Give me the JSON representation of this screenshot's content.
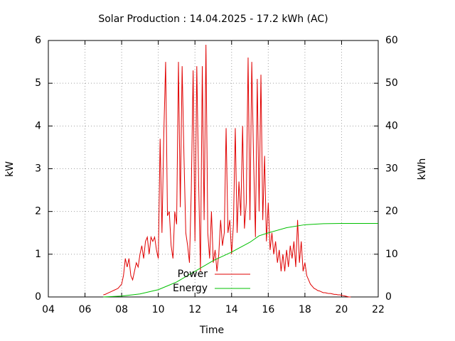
{
  "chart_data": {
    "type": "line",
    "title": "Solar Production : 14.04.2025 - 17.2 kWh (AC)",
    "xlabel": "Time",
    "ylabel": "kW",
    "y2label": "kWh",
    "xlim": [
      4,
      22
    ],
    "xticks": [
      {
        "value": 4,
        "label": "04"
      },
      {
        "value": 6,
        "label": "06"
      },
      {
        "value": 8,
        "label": "08"
      },
      {
        "value": 10,
        "label": "10"
      },
      {
        "value": 12,
        "label": "12"
      },
      {
        "value": 14,
        "label": "14"
      },
      {
        "value": 16,
        "label": "16"
      },
      {
        "value": 18,
        "label": "18"
      },
      {
        "value": 20,
        "label": "20"
      },
      {
        "value": 22,
        "label": "22"
      }
    ],
    "ylim": [
      0,
      6
    ],
    "yticks": [
      0,
      1,
      2,
      3,
      4,
      5,
      6
    ],
    "y2lim": [
      0,
      60
    ],
    "y2ticks": [
      0,
      10,
      20,
      30,
      40,
      50,
      60
    ],
    "grid": true,
    "legend": "bottom center",
    "series": [
      {
        "name": "Power",
        "color": "#e00000",
        "x": [
          7.0,
          7.1,
          7.2,
          7.3,
          7.4,
          7.5,
          7.6,
          7.7,
          7.8,
          7.9,
          8.0,
          8.1,
          8.2,
          8.3,
          8.4,
          8.5,
          8.6,
          8.7,
          8.8,
          8.9,
          9.0,
          9.1,
          9.2,
          9.3,
          9.4,
          9.5,
          9.6,
          9.7,
          9.8,
          9.9,
          10.0,
          10.1,
          10.2,
          10.3,
          10.4,
          10.5,
          10.6,
          10.7,
          10.8,
          10.9,
          11.0,
          11.1,
          11.2,
          11.3,
          11.4,
          11.5,
          11.6,
          11.7,
          11.8,
          11.9,
          12.0,
          12.1,
          12.2,
          12.3,
          12.4,
          12.5,
          12.6,
          12.7,
          12.8,
          12.9,
          13.0,
          13.1,
          13.2,
          13.3,
          13.4,
          13.5,
          13.6,
          13.7,
          13.8,
          13.9,
          14.0,
          14.1,
          14.2,
          14.3,
          14.4,
          14.5,
          14.6,
          14.7,
          14.8,
          14.9,
          15.0,
          15.1,
          15.2,
          15.3,
          15.4,
          15.5,
          15.6,
          15.7,
          15.8,
          15.9,
          16.0,
          16.1,
          16.2,
          16.3,
          16.4,
          16.5,
          16.6,
          16.7,
          16.8,
          16.9,
          17.0,
          17.1,
          17.2,
          17.3,
          17.4,
          17.5,
          17.6,
          17.7,
          17.8,
          17.9,
          18.0,
          18.1,
          18.2,
          18.3,
          18.4,
          18.5,
          18.6,
          18.7,
          18.8,
          18.9,
          19.0,
          19.1,
          19.2,
          19.3,
          19.4,
          19.5,
          19.6,
          19.7,
          19.8,
          19.9,
          20.0,
          20.1,
          20.2,
          20.3,
          20.4,
          20.5
        ],
        "values": [
          0.05,
          0.06,
          0.08,
          0.1,
          0.12,
          0.14,
          0.16,
          0.18,
          0.2,
          0.25,
          0.3,
          0.5,
          0.9,
          0.7,
          0.9,
          0.5,
          0.4,
          0.6,
          0.8,
          0.7,
          1.0,
          1.2,
          0.9,
          1.3,
          1.4,
          1.0,
          1.4,
          1.3,
          1.4,
          1.1,
          0.9,
          3.7,
          1.5,
          3.8,
          5.5,
          1.9,
          2.0,
          1.2,
          0.9,
          2.0,
          1.7,
          5.5,
          2.1,
          5.4,
          3.3,
          1.5,
          1.2,
          0.8,
          2.5,
          5.3,
          1.3,
          5.4,
          2.7,
          0.6,
          5.4,
          1.8,
          5.9,
          1.5,
          0.9,
          2.0,
          0.8,
          1.1,
          0.6,
          1.0,
          1.8,
          1.2,
          1.5,
          3.95,
          1.5,
          1.8,
          1.0,
          1.7,
          3.95,
          1.5,
          2.7,
          1.9,
          4.0,
          1.6,
          2.2,
          5.6,
          1.8,
          5.5,
          3.2,
          1.4,
          5.1,
          2.0,
          5.2,
          1.8,
          3.3,
          1.3,
          2.2,
          1.1,
          1.5,
          1.0,
          1.3,
          0.8,
          1.1,
          0.6,
          1.0,
          0.6,
          1.1,
          0.7,
          1.2,
          0.9,
          1.3,
          0.7,
          1.8,
          0.8,
          1.3,
          0.6,
          0.8,
          0.5,
          0.4,
          0.3,
          0.25,
          0.2,
          0.18,
          0.15,
          0.14,
          0.12,
          0.1,
          0.1,
          0.09,
          0.08,
          0.08,
          0.07,
          0.06,
          0.06,
          0.05,
          0.05,
          0.04,
          0.03,
          0.02,
          0.01,
          0,
          0
        ]
      },
      {
        "name": "Energy",
        "color": "#00c000",
        "axis": "y2",
        "x": [
          7,
          8,
          9,
          10,
          10.5,
          11,
          12,
          13,
          14,
          15,
          15.5,
          16,
          17,
          18,
          19,
          20,
          20.5,
          22
        ],
        "values": [
          0,
          0.2,
          0.7,
          1.7,
          2.6,
          3.5,
          6,
          8.5,
          10.5,
          12.8,
          14.3,
          15,
          16.2,
          16.9,
          17.15,
          17.2,
          17.2,
          17.2
        ]
      }
    ]
  }
}
